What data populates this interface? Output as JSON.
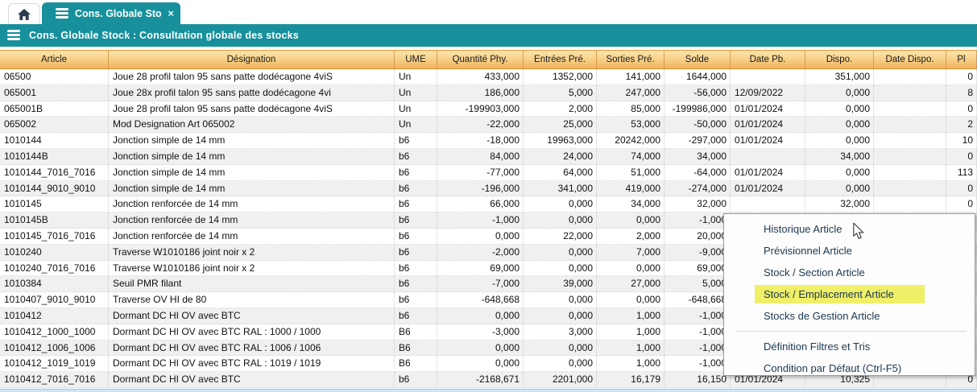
{
  "colors": {
    "teal": "#17909c",
    "header_gradient_top": "#fde4ad",
    "header_gradient_bottom": "#f0b25a",
    "row_alt": "#f0f0f0",
    "menu_highlight": "#efef68",
    "selection_blue": "#cfe4f6",
    "menu_text": "#1c3850"
  },
  "tabs": {
    "home": {
      "icon": "home-icon"
    },
    "active": {
      "icon": "stack-icon",
      "label": "Cons. Globale Stock : C...",
      "close": "×"
    }
  },
  "titlebar": {
    "icon": "stack-icon",
    "title": "Cons. Globale Stock : Consultation globale des stocks"
  },
  "table": {
    "columns": [
      "Article",
      "Désignation",
      "UME",
      "Quantité Phy.",
      "Entrées Pré.",
      "Sorties Pré.",
      "Solde",
      "Date Pb.",
      "Dispo.",
      "Date Dispo.",
      "Pl"
    ],
    "rows": [
      [
        "06500",
        "Joue 28 profil talon 95 sans patte dodécagone 4viS",
        "Un",
        "433,000",
        "1352,000",
        "141,000",
        "1644,000",
        "",
        "351,000",
        "",
        "0"
      ],
      [
        "065001",
        "Joue 28x profil talon 95 sans patte dodécagone 4vi",
        "Un",
        "186,000",
        "5,000",
        "247,000",
        "-56,000",
        "12/09/2022",
        "0,000",
        "",
        "8"
      ],
      [
        "065001B",
        "Joue 28 profil talon 95 sans patte dodécagone 4viS",
        "Un",
        "-199903,000",
        "2,000",
        "85,000",
        "-199986,000",
        "01/01/2024",
        "0,000",
        "",
        "0"
      ],
      [
        "065002",
        "Mod Designation Art 065002",
        "Un",
        "-22,000",
        "25,000",
        "53,000",
        "-50,000",
        "01/01/2024",
        "0,000",
        "",
        "2"
      ],
      [
        "1010144",
        "Jonction simple de 14 mm",
        "b6",
        "-18,000",
        "19963,000",
        "20242,000",
        "-297,000",
        "01/01/2024",
        "0,000",
        "",
        "10"
      ],
      [
        "1010144B",
        "Jonction simple de 14 mm",
        "b6",
        "84,000",
        "24,000",
        "74,000",
        "34,000",
        "",
        "34,000",
        "",
        "0"
      ],
      [
        "1010144_7016_7016",
        "Jonction simple de 14 mm",
        "b6",
        "-77,000",
        "64,000",
        "51,000",
        "-64,000",
        "01/01/2024",
        "0,000",
        "",
        "113"
      ],
      [
        "1010144_9010_9010",
        "Jonction simple de 14 mm",
        "b6",
        "-196,000",
        "341,000",
        "419,000",
        "-274,000",
        "01/01/2024",
        "0,000",
        "",
        "0"
      ],
      [
        "1010145",
        "Jonction renforcée de 14 mm",
        "b6",
        "66,000",
        "0,000",
        "34,000",
        "32,000",
        "",
        "32,000",
        "",
        "0"
      ],
      [
        "1010145B",
        "Jonction renforcée de 14 mm",
        "b6",
        "-1,000",
        "0,000",
        "0,000",
        "-1,000",
        "",
        "",
        "",
        ""
      ],
      [
        "1010145_7016_7016",
        "Jonction renforcée de 14 mm",
        "b6",
        "0,000",
        "22,000",
        "2,000",
        "20,000",
        "",
        "",
        "",
        ""
      ],
      [
        "1010240",
        "Traverse W1010186 joint noir x 2",
        "b6",
        "-2,000",
        "0,000",
        "7,000",
        "-9,000",
        "",
        "",
        "",
        ""
      ],
      [
        "1010240_7016_7016",
        "Traverse W1010186 joint noir x 2",
        "b6",
        "69,000",
        "0,000",
        "0,000",
        "69,000",
        "",
        "",
        "",
        ""
      ],
      [
        "1010384",
        "Seuil PMR filant",
        "b6",
        "-7,000",
        "39,000",
        "27,000",
        "5,000",
        "",
        "",
        "",
        ""
      ],
      [
        "1010407_9010_9010",
        "Traverse OV HI de 80",
        "b6",
        "-648,668",
        "0,000",
        "0,000",
        "-648,668",
        "",
        "",
        "",
        ""
      ],
      [
        "1010412",
        "Dormant DC HI OV avec BTC",
        "b6",
        "0,000",
        "0,000",
        "1,000",
        "-1,000",
        "",
        "",
        "",
        ""
      ],
      [
        "1010412_1000_1000",
        "Dormant DC HI OV avec BTC RAL : 1000 / 1000",
        "B6",
        "-3,000",
        "3,000",
        "1,000",
        "-1,000",
        "",
        "",
        "",
        ""
      ],
      [
        "1010412_1006_1006",
        "Dormant DC HI OV avec BTC RAL : 1006 / 1006",
        "B6",
        "0,000",
        "0,000",
        "1,000",
        "-1,000",
        "",
        "",
        "",
        ""
      ],
      [
        "1010412_1019_1019",
        "Dormant DC HI OV avec BTC RAL : 1019 / 1019",
        "B6",
        "0,000",
        "0,000",
        "1,000",
        "-1,000",
        "",
        "",
        "",
        ""
      ],
      [
        "1010412_7016_7016",
        "Dormant DC HI OV avec BTC",
        "b6",
        "-2168,671",
        "2201,000",
        "16,179",
        "16,150",
        "01/01/2024",
        "10,325",
        "",
        "0"
      ]
    ]
  },
  "context_menu": {
    "items": [
      {
        "label": "Historique Article",
        "highlighted": false
      },
      {
        "label": "Prévisionnel Article",
        "highlighted": false
      },
      {
        "label": "Stock / Section Article",
        "highlighted": false
      },
      {
        "label": "Stock / Emplacement Article",
        "highlighted": true
      },
      {
        "label": "Stocks de Gestion Article",
        "highlighted": false
      },
      {
        "separator": true
      },
      {
        "label": "Définition Filtres et Tris",
        "highlighted": false
      },
      {
        "label": "Condition par Défaut (Ctrl-F5)",
        "highlighted": false
      }
    ]
  }
}
